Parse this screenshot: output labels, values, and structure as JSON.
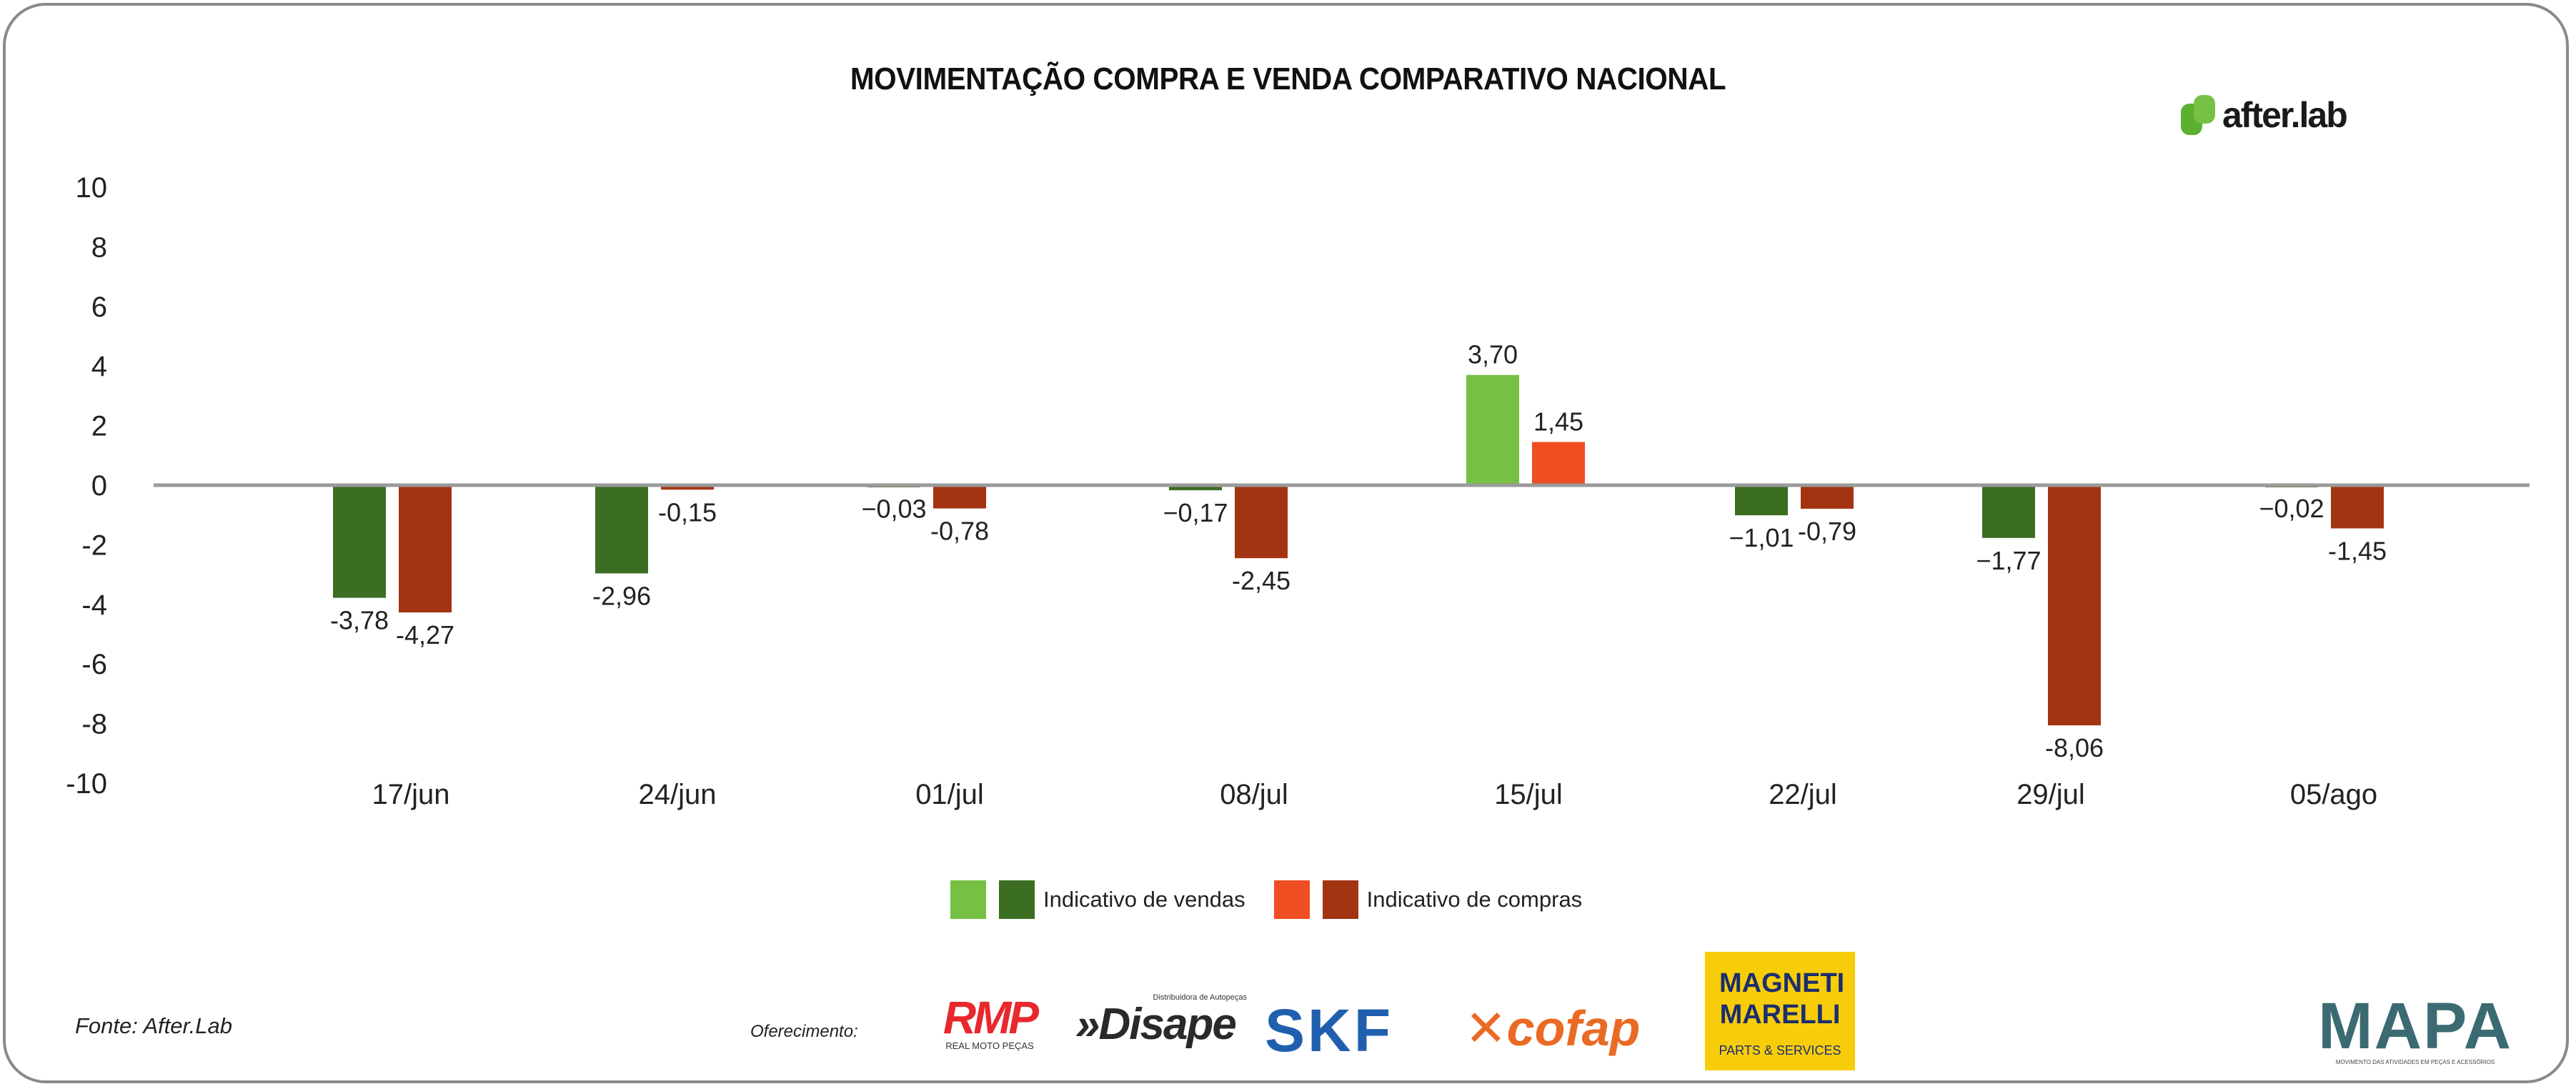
{
  "chart_data": {
    "type": "bar",
    "title": "MOVIMENTAÇÃO COMPRA E VENDA COMPARATIVO NACIONAL",
    "xlabel": "",
    "ylabel": "",
    "ylim": [
      -10,
      10
    ],
    "yticks": [
      "10",
      "8",
      "6",
      "4",
      "2",
      "0",
      "-2",
      "-4",
      "-6",
      "-8",
      "-10"
    ],
    "ytick_values": [
      10,
      8,
      6,
      4,
      2,
      0,
      -2,
      -4,
      -6,
      -8,
      -10
    ],
    "categories": [
      "17/jun",
      "24/jun",
      "01/jul",
      "08/jul",
      "15/jul",
      "22/jul",
      "29/jul",
      "05/ago"
    ],
    "series": [
      {
        "name": "Indicativo de vendas",
        "values": [
          -3.78,
          -2.96,
          -0.03,
          -0.17,
          3.7,
          -1.01,
          -1.77,
          -0.02
        ],
        "labels": [
          "-3,78",
          "-2,96",
          "−0,03",
          "−0,17",
          "3,70",
          "−1,01",
          "−1,77",
          "−0,02"
        ]
      },
      {
        "name": "Indicativo de compras",
        "values": [
          -4.27,
          -0.15,
          -0.78,
          -2.45,
          1.45,
          -0.79,
          -8.06,
          -1.45
        ],
        "labels": [
          "-4,27",
          "-0,15",
          "-0,78",
          "-2,45",
          "1,45",
          "-0,79",
          "-8,06",
          "-1,45"
        ]
      }
    ],
    "legend_placement": "bottom-center",
    "grid": false,
    "colors": {
      "vendas_positive": "#76c043",
      "vendas_negative": "#3b6e23",
      "compras_positive": "#f04e23",
      "compras_negative": "#a33412",
      "zero_line": "#9a9a9a"
    }
  },
  "legend": {
    "vendas": "Indicativo de vendas",
    "compras": "Indicativo de compras"
  },
  "brand": "after.lab",
  "source": "Fonte: After.Lab",
  "sponsors_label": "Oferecimento:",
  "sponsors": {
    "rmp": "RMP",
    "rmp_sub": "REAL MOTO PEÇAS",
    "disape": "Disape",
    "disape_sub": "Distribuidora de Autopeças",
    "skf": "SKF",
    "cofap": "cofap",
    "magneti": "MAGNETI MARELLI",
    "magneti_sub": "PARTS & SERVICES",
    "mapa": "MAPA",
    "mapa_sub": "MOVIMENTO DAS ATIVIDADES EM PEÇAS E ACESSÓRIOS"
  }
}
